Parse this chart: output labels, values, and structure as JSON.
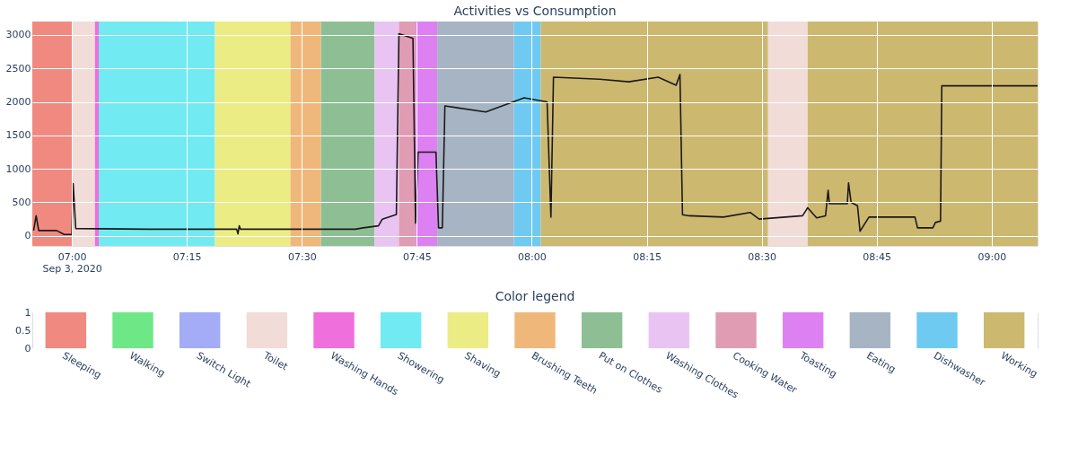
{
  "chart_data": [
    {
      "type": "line",
      "title": "Activities vs Consumption",
      "x": [
        "2020-09-03T06:55:00",
        "2020-09-03T06:55:20",
        "2020-09-03T06:55:40",
        "2020-09-03T06:58:00",
        "2020-09-03T06:59:00",
        "2020-09-03T07:00:00",
        "2020-09-03T07:00:10",
        "2020-09-03T07:00:30",
        "2020-09-03T07:10:00",
        "2020-09-03T07:21:30",
        "2020-09-03T07:21:40",
        "2020-09-03T07:21:50",
        "2020-09-03T07:22:00",
        "2020-09-03T07:37:00",
        "2020-09-03T07:38:00",
        "2020-09-03T07:40:00",
        "2020-09-03T07:40:30",
        "2020-09-03T07:42:20",
        "2020-09-03T07:42:40",
        "2020-09-03T07:44:30",
        "2020-09-03T07:44:50",
        "2020-09-03T07:45:10",
        "2020-09-03T07:47:30",
        "2020-09-03T07:47:50",
        "2020-09-03T07:48:20",
        "2020-09-03T07:48:40",
        "2020-09-03T07:54:00",
        "2020-09-03T07:59:00",
        "2020-09-03T08:02:00",
        "2020-09-03T08:02:30",
        "2020-09-03T08:02:50",
        "2020-09-03T08:08:50",
        "2020-09-03T08:12:40",
        "2020-09-03T08:16:30",
        "2020-09-03T08:18:50",
        "2020-09-03T08:19:20",
        "2020-09-03T08:19:40",
        "2020-09-03T08:20:30",
        "2020-09-03T08:25:00",
        "2020-09-03T08:28:30",
        "2020-09-03T08:29:40",
        "2020-09-03T08:35:20",
        "2020-09-03T08:36:00",
        "2020-09-03T08:37:10",
        "2020-09-03T08:38:20",
        "2020-09-03T08:38:40",
        "2020-09-03T08:38:50",
        "2020-09-03T08:41:10",
        "2020-09-03T08:41:20",
        "2020-09-03T08:41:40",
        "2020-09-03T08:42:30",
        "2020-09-03T08:42:50",
        "2020-09-03T08:44:00",
        "2020-09-03T08:50:00",
        "2020-09-03T08:50:20",
        "2020-09-03T08:52:20",
        "2020-09-03T08:52:40",
        "2020-09-03T08:53:20",
        "2020-09-03T08:53:30",
        "2020-09-03T09:06:00"
      ],
      "series": [
        {
          "color": "#1a1a1a",
          "values": [
            80,
            300,
            80,
            80,
            20,
            20,
            780,
            110,
            100,
            100,
            30,
            150,
            100,
            100,
            120,
            150,
            250,
            320,
            3020,
            2950,
            190,
            1250,
            1250,
            120,
            120,
            1940,
            1850,
            2060,
            2000,
            280,
            2370,
            2340,
            2300,
            2370,
            2250,
            2410,
            315,
            300,
            280,
            350,
            250,
            300,
            420,
            270,
            300,
            680,
            480,
            480,
            790,
            500,
            450,
            70,
            280,
            280,
            120,
            120,
            200,
            220,
            2240,
            2240
          ]
        }
      ],
      "xlim": [
        "2020-09-03T06:54:50",
        "2020-09-03T09:06:00"
      ],
      "xticks": [
        {
          "value": "2020-09-03T07:00",
          "label": "07:00\nSep 3, 2020"
        },
        {
          "value": "2020-09-03T07:15",
          "label": "07:15"
        },
        {
          "value": "2020-09-03T07:30",
          "label": "07:30"
        },
        {
          "value": "2020-09-03T07:45",
          "label": "07:45"
        },
        {
          "value": "2020-09-03T08:00",
          "label": "08:00"
        },
        {
          "value": "2020-09-03T08:15",
          "label": "08:15"
        },
        {
          "value": "2020-09-03T08:30",
          "label": "08:30"
        },
        {
          "value": "2020-09-03T08:45",
          "label": "08:45"
        },
        {
          "value": "2020-09-03T09:00",
          "label": "09:00"
        }
      ],
      "ylim": [
        -150,
        3200
      ],
      "yticks": [
        0,
        500,
        1000,
        1500,
        2000,
        2500,
        3000
      ],
      "grid": true,
      "bands": [
        {
          "axis": "x",
          "from": "2020-09-03T06:54:50",
          "to": "2020-09-03T07:00:00",
          "color": "#f08a80"
        },
        {
          "axis": "x",
          "from": "2020-09-03T07:00:00",
          "to": "2020-09-03T07:03:00",
          "color": "#f2dcd8"
        },
        {
          "axis": "x",
          "from": "2020-09-03T07:03:00",
          "to": "2020-09-03T07:03:30",
          "color": "#ef6fdc"
        },
        {
          "axis": "x",
          "from": "2020-09-03T07:03:30",
          "to": "2020-09-03T07:18:40",
          "color": "#72eaf2"
        },
        {
          "axis": "x",
          "from": "2020-09-03T07:18:40",
          "to": "2020-09-03T07:28:30",
          "color": "#ecec85"
        },
        {
          "axis": "x",
          "from": "2020-09-03T07:28:30",
          "to": "2020-09-03T07:32:30",
          "color": "#efb87a"
        },
        {
          "axis": "x",
          "from": "2020-09-03T07:32:30",
          "to": "2020-09-03T07:39:30",
          "color": "#8ebf94"
        },
        {
          "axis": "x",
          "from": "2020-09-03T07:39:30",
          "to": "2020-09-03T07:42:40",
          "color": "#e9c4f2"
        },
        {
          "axis": "x",
          "from": "2020-09-03T07:42:40",
          "to": "2020-09-03T07:44:50",
          "color": "#df9cb3"
        },
        {
          "axis": "x",
          "from": "2020-09-03T07:44:50",
          "to": "2020-09-03T07:47:40",
          "color": "#dd80f2"
        },
        {
          "axis": "x",
          "from": "2020-09-03T07:47:40",
          "to": "2020-09-03T07:57:40",
          "color": "#a7b4c4"
        },
        {
          "axis": "x",
          "from": "2020-09-03T07:57:40",
          "to": "2020-09-03T08:01:10",
          "color": "#6fcaf2"
        },
        {
          "axis": "x",
          "from": "2020-09-03T08:01:10",
          "to": "2020-09-03T08:30:50",
          "color": "#cdb870"
        },
        {
          "axis": "x",
          "from": "2020-09-03T08:30:50",
          "to": "2020-09-03T08:36:00",
          "color": "#f2dcd8"
        },
        {
          "axis": "x",
          "from": "2020-09-03T08:36:00",
          "to": "2020-09-03T09:06:00",
          "color": "#cdb870"
        }
      ]
    },
    {
      "type": "bar",
      "title": "Color legend",
      "categories": [
        "Sleeping",
        "Walking",
        "Switch Light",
        "Toilet",
        "Washing Hands",
        "Showering",
        "Shaving",
        "Brushing Teeth",
        "Put on Clothes",
        "Washing Clothes",
        "Cooking Water",
        "Toasting",
        "Eating",
        "Dishwasher",
        "Working"
      ],
      "values": [
        1,
        1,
        1,
        1,
        1,
        1,
        1,
        1,
        1,
        1,
        1,
        1,
        1,
        1,
        1
      ],
      "colors": [
        "#f08a80",
        "#6ee887",
        "#a3acf5",
        "#f2dcd8",
        "#ef6fdc",
        "#72eaf2",
        "#ecec85",
        "#efb87a",
        "#8ebf94",
        "#e9c4f2",
        "#df9cb3",
        "#dd80f2",
        "#a7b4c4",
        "#6fcaf2",
        "#cdb870"
      ],
      "ylim": [
        0,
        1
      ],
      "yticks": [
        0,
        0.5,
        1
      ],
      "grid": "y"
    }
  ]
}
